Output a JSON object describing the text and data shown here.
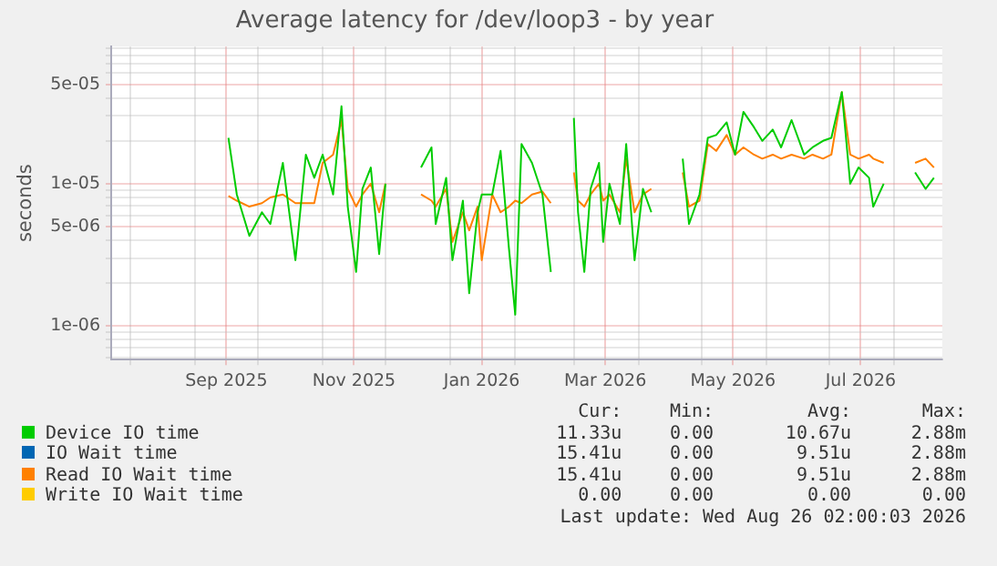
{
  "chart_data": {
    "type": "line",
    "title": "Average latency for /dev/loop3 - by year",
    "ylabel": "seconds",
    "log": "y",
    "grid": true,
    "legend": "bottom",
    "marker": "none",
    "line_style": "solid",
    "xlim": [
      "2025-07-23",
      "2026-08-24"
    ],
    "xticks": [
      {
        "value": "2025-08-01",
        "label": null
      },
      {
        "value": "2025-09-01",
        "label": null
      },
      {
        "value": "2025-09-16",
        "label": "Sep 2025"
      },
      {
        "value": "2025-10-01",
        "label": null
      },
      {
        "value": "2025-11-01",
        "label": null
      },
      {
        "value": "2025-11-16",
        "label": "Nov 2025"
      },
      {
        "value": "2025-12-01",
        "label": null
      },
      {
        "value": "2026-01-01",
        "label": null
      },
      {
        "value": "2026-01-16",
        "label": "Jan 2026"
      },
      {
        "value": "2026-02-01",
        "label": null
      },
      {
        "value": "2026-03-01",
        "label": null
      },
      {
        "value": "2026-03-16",
        "label": "Mar 2026"
      },
      {
        "value": "2026-04-01",
        "label": null
      },
      {
        "value": "2026-05-01",
        "label": null
      },
      {
        "value": "2026-05-16",
        "label": "May 2026"
      },
      {
        "value": "2026-06-01",
        "label": null
      },
      {
        "value": "2026-07-01",
        "label": null
      },
      {
        "value": "2026-07-16",
        "label": "Jul 2026"
      },
      {
        "value": "2026-08-01",
        "label": null
      }
    ],
    "ylim": [
      5.8e-07,
      9.2e-05
    ],
    "yticks": [
      {
        "value": 6e-07,
        "label": null
      },
      {
        "value": 7e-07,
        "label": null
      },
      {
        "value": 8e-07,
        "label": null
      },
      {
        "value": 9e-07,
        "label": null
      },
      {
        "value": 1e-06,
        "label": "1e-06"
      },
      {
        "value": 2e-06,
        "label": null
      },
      {
        "value": 3e-06,
        "label": null
      },
      {
        "value": 4e-06,
        "label": null
      },
      {
        "value": 5e-06,
        "label": "5e-06"
      },
      {
        "value": 6e-06,
        "label": null
      },
      {
        "value": 7e-06,
        "label": null
      },
      {
        "value": 8e-06,
        "label": null
      },
      {
        "value": 9e-06,
        "label": null
      },
      {
        "value": 1e-05,
        "label": "1e-05"
      },
      {
        "value": 2e-05,
        "label": null
      },
      {
        "value": 3e-05,
        "label": null
      },
      {
        "value": 4e-05,
        "label": null
      },
      {
        "value": 5e-05,
        "label": "5e-05"
      },
      {
        "value": 6e-05,
        "label": null
      },
      {
        "value": 7e-05,
        "label": null
      },
      {
        "value": 8e-05,
        "label": null
      },
      {
        "value": 9e-05,
        "label": null
      }
    ],
    "x": [
      "2025-09-17",
      "2025-09-21",
      "2025-09-27",
      "2025-10-03",
      "2025-10-07",
      "2025-10-13",
      "2025-10-19",
      "2025-10-24",
      "2025-10-28",
      "2025-11-01",
      "2025-11-06",
      "2025-11-10",
      "2025-11-13",
      "2025-11-17",
      "2025-11-20",
      "2025-11-24",
      "2025-11-28",
      "2025-12-01",
      "2025-12-03",
      "2025-12-18",
      "2025-12-23",
      "2025-12-25",
      "2025-12-30",
      "2026-01-02",
      "2026-01-07",
      "2026-01-10",
      "2026-01-14",
      "2026-01-16",
      "2026-01-21",
      "2026-01-25",
      "2026-01-29",
      "2026-02-01",
      "2026-02-04",
      "2026-02-09",
      "2026-02-14",
      "2026-02-18",
      "2026-02-23",
      "2026-03-01",
      "2026-03-03",
      "2026-03-06",
      "2026-03-09",
      "2026-03-13",
      "2026-03-15",
      "2026-03-18",
      "2026-03-23",
      "2026-03-26",
      "2026-03-30",
      "2026-04-03",
      "2026-04-07",
      "2026-04-09",
      "2026-04-22",
      "2026-04-25",
      "2026-04-30",
      "2026-05-04",
      "2026-05-08",
      "2026-05-13",
      "2026-05-17",
      "2026-05-21",
      "2026-05-26",
      "2026-05-30",
      "2026-06-04",
      "2026-06-08",
      "2026-06-13",
      "2026-06-19",
      "2026-06-23",
      "2026-06-28",
      "2026-07-02",
      "2026-07-07",
      "2026-07-11",
      "2026-07-15",
      "2026-07-20",
      "2026-07-22",
      "2026-07-27",
      "2026-07-29",
      "2026-08-11",
      "2026-08-16",
      "2026-08-20"
    ],
    "series": [
      {
        "name": "Device IO time",
        "color": "#00cc00",
        "values": [
          2.1e-05,
          8.4e-06,
          4.3e-06,
          6.3e-06,
          5.2e-06,
          1.4e-05,
          2.9e-06,
          1.6e-05,
          1.1e-05,
          1.6e-05,
          8.4e-06,
          3.5e-05,
          6.9e-06,
          2.4e-06,
          9.2e-06,
          1.3e-05,
          3.2e-06,
          1e-05,
          null,
          1.3e-05,
          1.8e-05,
          5.2e-06,
          1.1e-05,
          2.9e-06,
          7.6e-06,
          1.7e-06,
          6.3e-06,
          8.4e-06,
          8.4e-06,
          1.7e-05,
          3.5e-06,
          1.2e-06,
          1.9e-05,
          1.4e-05,
          8.4e-06,
          2.4e-06,
          null,
          2.9e-05,
          6.3e-06,
          2.4e-06,
          9.2e-06,
          1.4e-05,
          3.9e-06,
          1e-05,
          5.2e-06,
          1.9e-05,
          2.9e-06,
          9.2e-06,
          6.3e-06,
          null,
          1.5e-05,
          5.2e-06,
          8.4e-06,
          2.1e-05,
          2.2e-05,
          2.7e-05,
          1.6e-05,
          3.2e-05,
          2.5e-05,
          2e-05,
          2.4e-05,
          1.8e-05,
          2.8e-05,
          1.6e-05,
          1.8e-05,
          2e-05,
          2.1e-05,
          4.4e-05,
          1e-05,
          1.3e-05,
          1.1e-05,
          6.9e-06,
          1e-05,
          null,
          1.2e-05,
          9.2e-06,
          1.1e-05
        ]
      },
      {
        "name": "IO Wait time",
        "color": "#0066b3",
        "values": [
          null,
          null,
          null,
          null,
          null,
          null,
          null,
          null,
          null,
          null,
          null,
          null,
          null,
          null,
          null,
          null,
          null,
          null,
          null,
          null,
          null,
          null,
          null,
          null,
          null,
          null,
          null,
          null,
          null,
          null,
          null,
          null,
          null,
          null,
          null,
          null,
          null,
          null,
          null,
          null,
          null,
          null,
          null,
          null,
          null,
          null,
          null,
          null,
          null,
          null,
          null,
          null,
          null,
          null,
          null,
          null,
          null,
          null,
          null,
          null,
          null,
          null,
          null,
          null,
          null,
          null,
          null,
          null,
          null,
          null,
          null,
          null,
          null,
          null,
          null,
          null,
          null
        ]
      },
      {
        "name": "Read IO Wait time",
        "color": "#ff8000",
        "values": [
          8.2e-06,
          7.6e-06,
          6.9e-06,
          7.3e-06,
          8e-06,
          8.4e-06,
          7.3e-06,
          7.3e-06,
          7.3e-06,
          1.4e-05,
          1.6e-05,
          2.8e-05,
          9.2e-06,
          6.9e-06,
          8.4e-06,
          1e-05,
          6.3e-06,
          1e-05,
          null,
          8.4e-06,
          7.6e-06,
          6.9e-06,
          9.2e-06,
          3.9e-06,
          6.3e-06,
          4.7e-06,
          6.9e-06,
          2.9e-06,
          8.4e-06,
          6.3e-06,
          6.9e-06,
          7.6e-06,
          7.3e-06,
          8.4e-06,
          8.8e-06,
          7.3e-06,
          null,
          1.2e-05,
          7.6e-06,
          6.9e-06,
          8.4e-06,
          1e-05,
          7.6e-06,
          8.4e-06,
          6.3e-06,
          1.5e-05,
          6.3e-06,
          8.4e-06,
          9.2e-06,
          null,
          1.2e-05,
          6.9e-06,
          7.6e-06,
          1.9e-05,
          1.7e-05,
          2.2e-05,
          1.6e-05,
          1.8e-05,
          1.6e-05,
          1.5e-05,
          1.6e-05,
          1.5e-05,
          1.6e-05,
          1.5e-05,
          1.6e-05,
          1.5e-05,
          1.6e-05,
          4.4e-05,
          1.6e-05,
          1.5e-05,
          1.6e-05,
          1.5e-05,
          1.4e-05,
          null,
          1.4e-05,
          1.5e-05,
          1.3e-05
        ]
      },
      {
        "name": "Write IO Wait time",
        "color": "#ffcc00",
        "values": [
          null,
          null,
          null,
          null,
          null,
          null,
          null,
          null,
          null,
          null,
          null,
          null,
          null,
          null,
          null,
          null,
          null,
          null,
          null,
          null,
          null,
          null,
          null,
          null,
          null,
          null,
          null,
          null,
          null,
          null,
          null,
          null,
          null,
          null,
          null,
          null,
          null,
          null,
          null,
          null,
          null,
          null,
          null,
          null,
          null,
          null,
          null,
          null,
          null,
          null,
          null,
          null,
          null,
          null,
          null,
          null,
          null,
          null,
          null,
          null,
          null,
          null,
          null,
          null,
          null,
          null,
          null,
          null,
          null,
          null,
          null,
          null,
          null,
          null,
          null,
          null,
          null
        ]
      }
    ],
    "annotations": [
      "Cur:",
      "Min:",
      "Avg:",
      "Max:",
      "11.33u",
      "0.00",
      "10.67u",
      "2.88m",
      "15.41u",
      "0.00",
      "9.51u",
      "2.88m",
      "15.41u",
      "0.00",
      "9.51u",
      "2.88m",
      "0.00",
      "0.00",
      "0.00",
      "0.00",
      "Last update: Wed Aug 26 02:00:03 2026"
    ]
  }
}
